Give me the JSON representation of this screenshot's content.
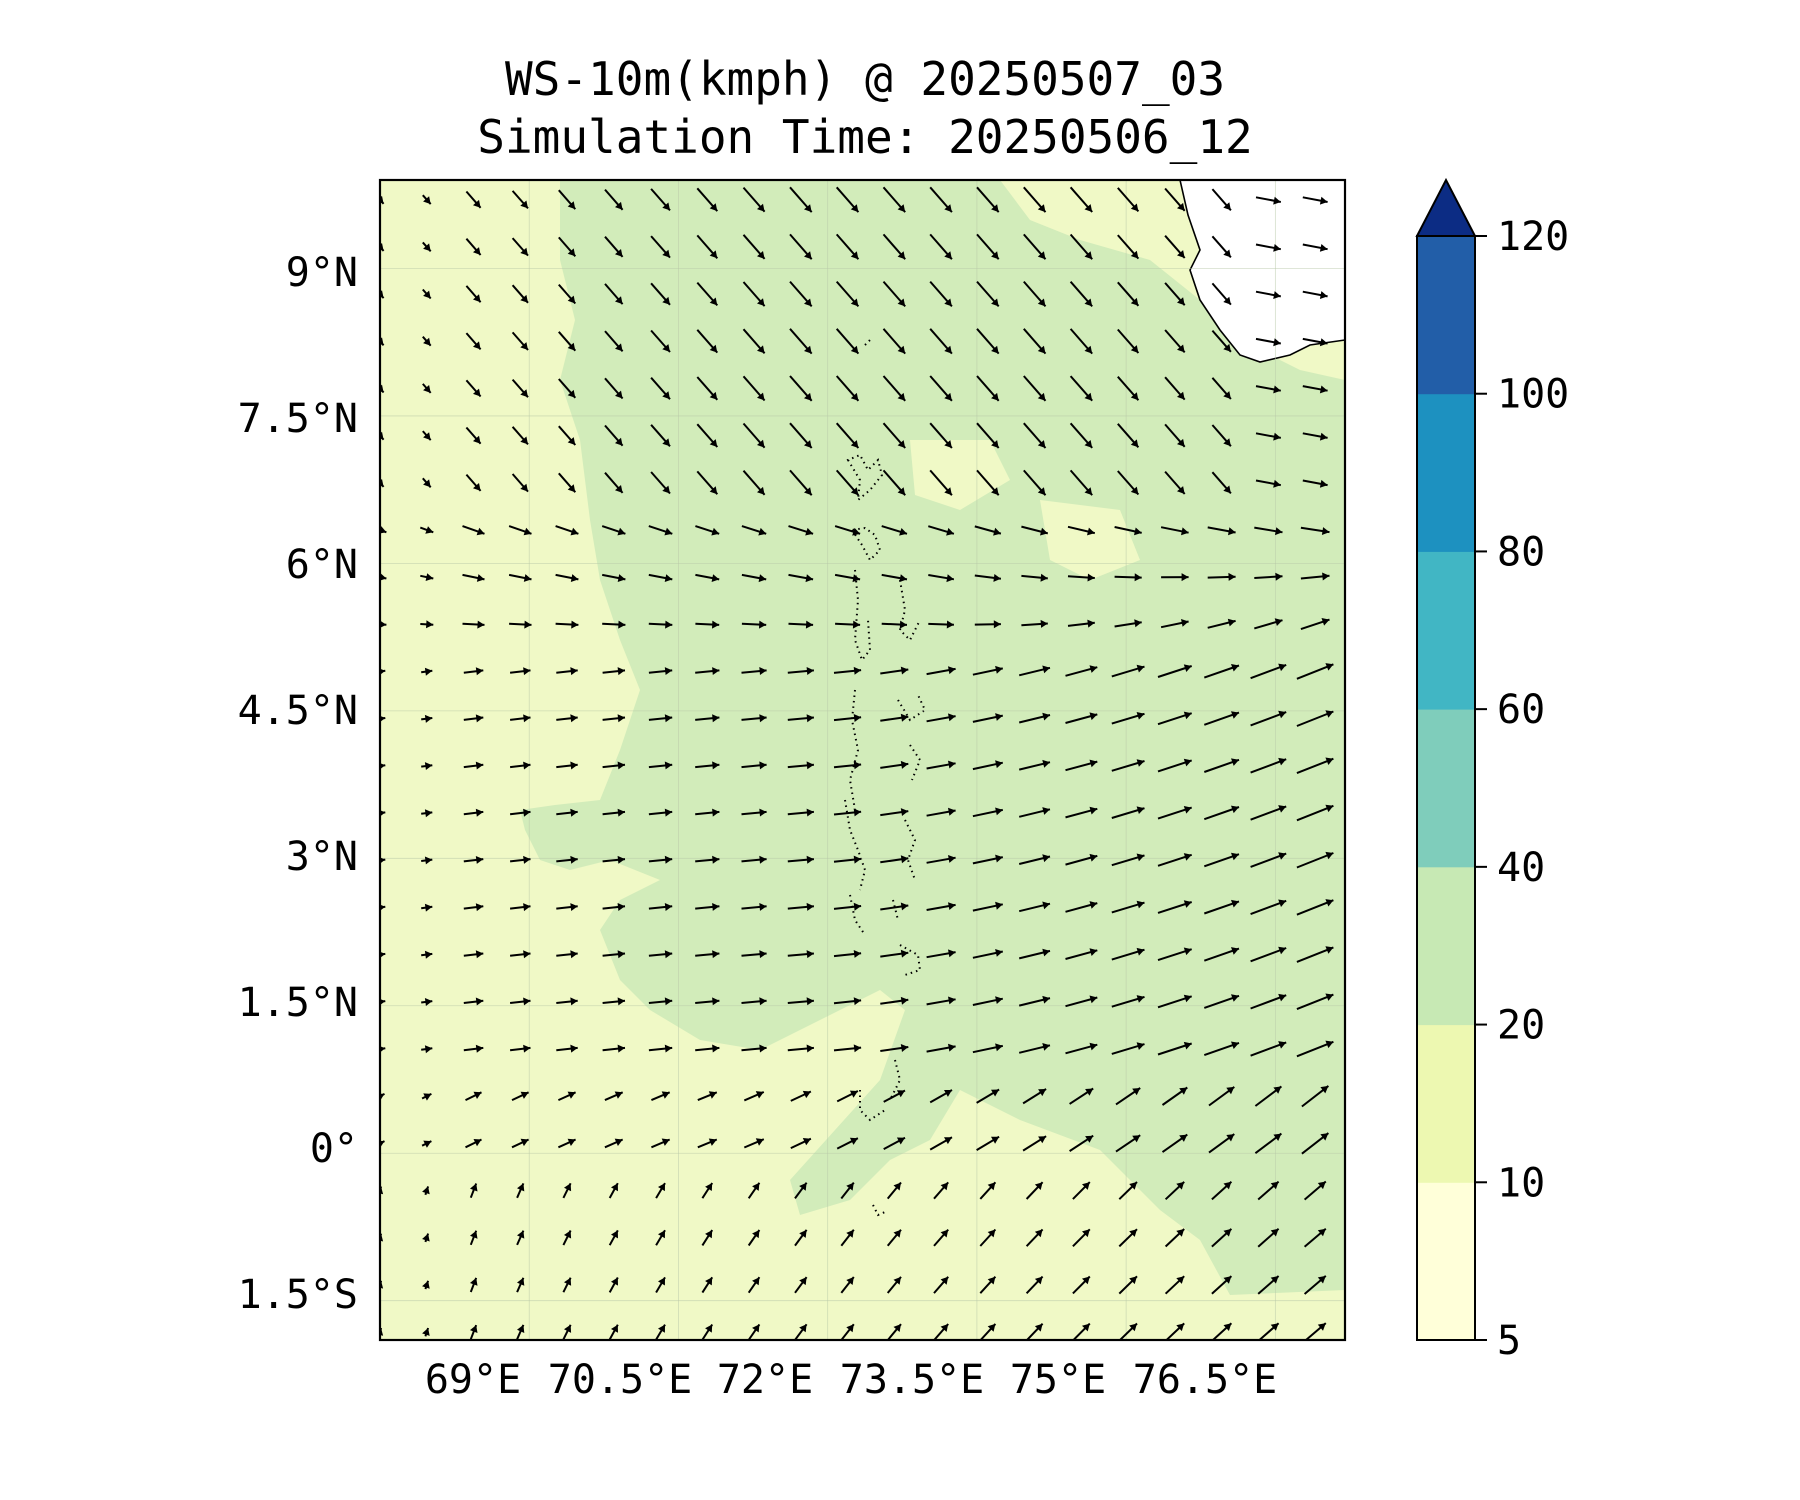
{
  "title": {
    "line1": "WS-10m(kmph) @ 20250507_03",
    "line2": "Simulation Time: 20250506_12"
  },
  "map": {
    "lon_range": [
      67.5,
      77.2
    ],
    "lat_range": [
      -1.9,
      9.9
    ],
    "y_tick_labels": [
      "9°N",
      "7.5°N",
      "6°N",
      "4.5°N",
      "3°N",
      "1.5°N",
      "0°",
      "1.5°S"
    ],
    "y_tick_values": [
      9,
      7.5,
      6,
      4.5,
      3,
      1.5,
      0,
      -1.5
    ],
    "x_tick_labels": [
      "69°E",
      "70.5°E",
      "72°E",
      "73.5°E",
      "75°E",
      "76.5°E"
    ],
    "x_tick_values": [
      69,
      70.5,
      72,
      73.5,
      75,
      76.5
    ],
    "land": "southern tip of India (top-right corner)",
    "islands": "Maldives atolls along ~73.0–73.6°E"
  },
  "colorbar": {
    "levels": [
      5,
      10,
      20,
      40,
      60,
      80,
      100,
      120
    ],
    "tick_labels": [
      "5",
      "10",
      "20",
      "40",
      "60",
      "80",
      "100",
      "120"
    ],
    "colors": [
      "#ffffd9",
      "#edf8b1",
      "#c7e9b4",
      "#7fcdbb",
      "#41b6c4",
      "#1d91c0",
      "#225ea8",
      "#0c2c84"
    ],
    "extend": "max"
  },
  "palette": {
    "shade_5_10": "#f0f9c6",
    "shade_10_20": "#f0f9c6",
    "shade_20_40": "#d2ecba",
    "land": "#ffffff"
  },
  "chart_data": {
    "type": "heatmap",
    "field": "10 m wind speed (kmph) with wind vectors",
    "value_bins": [
      "5-10",
      "10-20",
      "20-40",
      "40-60",
      "60-80",
      "80-100",
      "100-120",
      ">120"
    ],
    "observed_ranges": [
      "10-20 (west and south)",
      "20-40 (central and east)"
    ],
    "wind_pattern": "Northwesterly flow north of 6.5°N, westerly to west-southwesterly flow 1–6°N, southerly-to-southwesterly flow south of 0.5°N"
  }
}
